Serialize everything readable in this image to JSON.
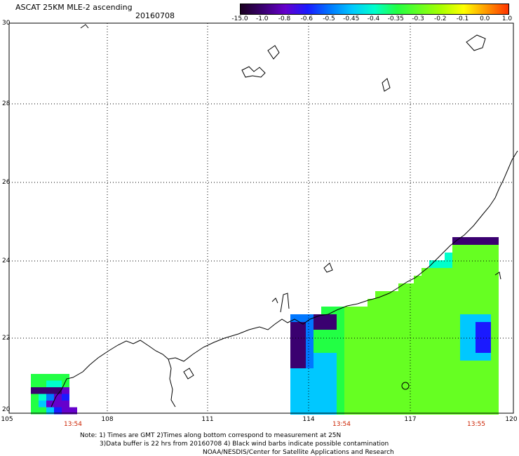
{
  "header": {
    "title": "ASCAT 25KM MLE-2 ascending",
    "date": "20160708"
  },
  "colorbar": {
    "labels": [
      "-15.0",
      "-1.0",
      "-0.8",
      "-0.6",
      "-0.5",
      "-0.45",
      "-0.4",
      "-0.35",
      "-0.3",
      "-0.2",
      "-0.1",
      "0.0",
      "1.0"
    ],
    "colors": [
      "#1a0020",
      "#3a0070",
      "#6600cc",
      "#1a1aff",
      "#0077ff",
      "#00c8ff",
      "#00ffcc",
      "#22ff44",
      "#66ff22",
      "#aaff00",
      "#ffff00",
      "#ff9900",
      "#ff3300"
    ]
  },
  "axes": {
    "lat_ticks": [
      "30",
      "28",
      "26",
      "24",
      "22",
      "20"
    ],
    "lon_ticks": [
      "105",
      "108",
      "111",
      "114",
      "117",
      "120"
    ]
  },
  "times": [
    "13:54",
    "13:54",
    "13:55"
  ],
  "notes": [
    "Note: 1) Times are GMT 2)Times along bottom correspond to measurement at 25N",
    "3)Data buffer is 22 hrs from 20160708 4) Black wind barbs indicate possible contamination",
    "NOAA/NESDIS/Center for Satellite Applications and Research"
  ],
  "swaths": {
    "west": {
      "rows": [
        [
          0.62,
          0.62,
          0.62,
          0.62,
          0.62
        ],
        [
          0.55,
          0.55,
          0.5,
          0.48,
          0.55
        ],
        [
          0.05,
          0.05,
          0.05,
          0.05,
          0.15
        ],
        [
          0.62,
          0.5,
          0.3,
          0.2,
          0.25
        ],
        [
          0.55,
          0.4,
          0.2,
          0.15,
          0.15
        ],
        [
          0.58,
          0.55,
          0.4,
          0.25,
          0.2,
          0.15
        ]
      ]
    }
  }
}
